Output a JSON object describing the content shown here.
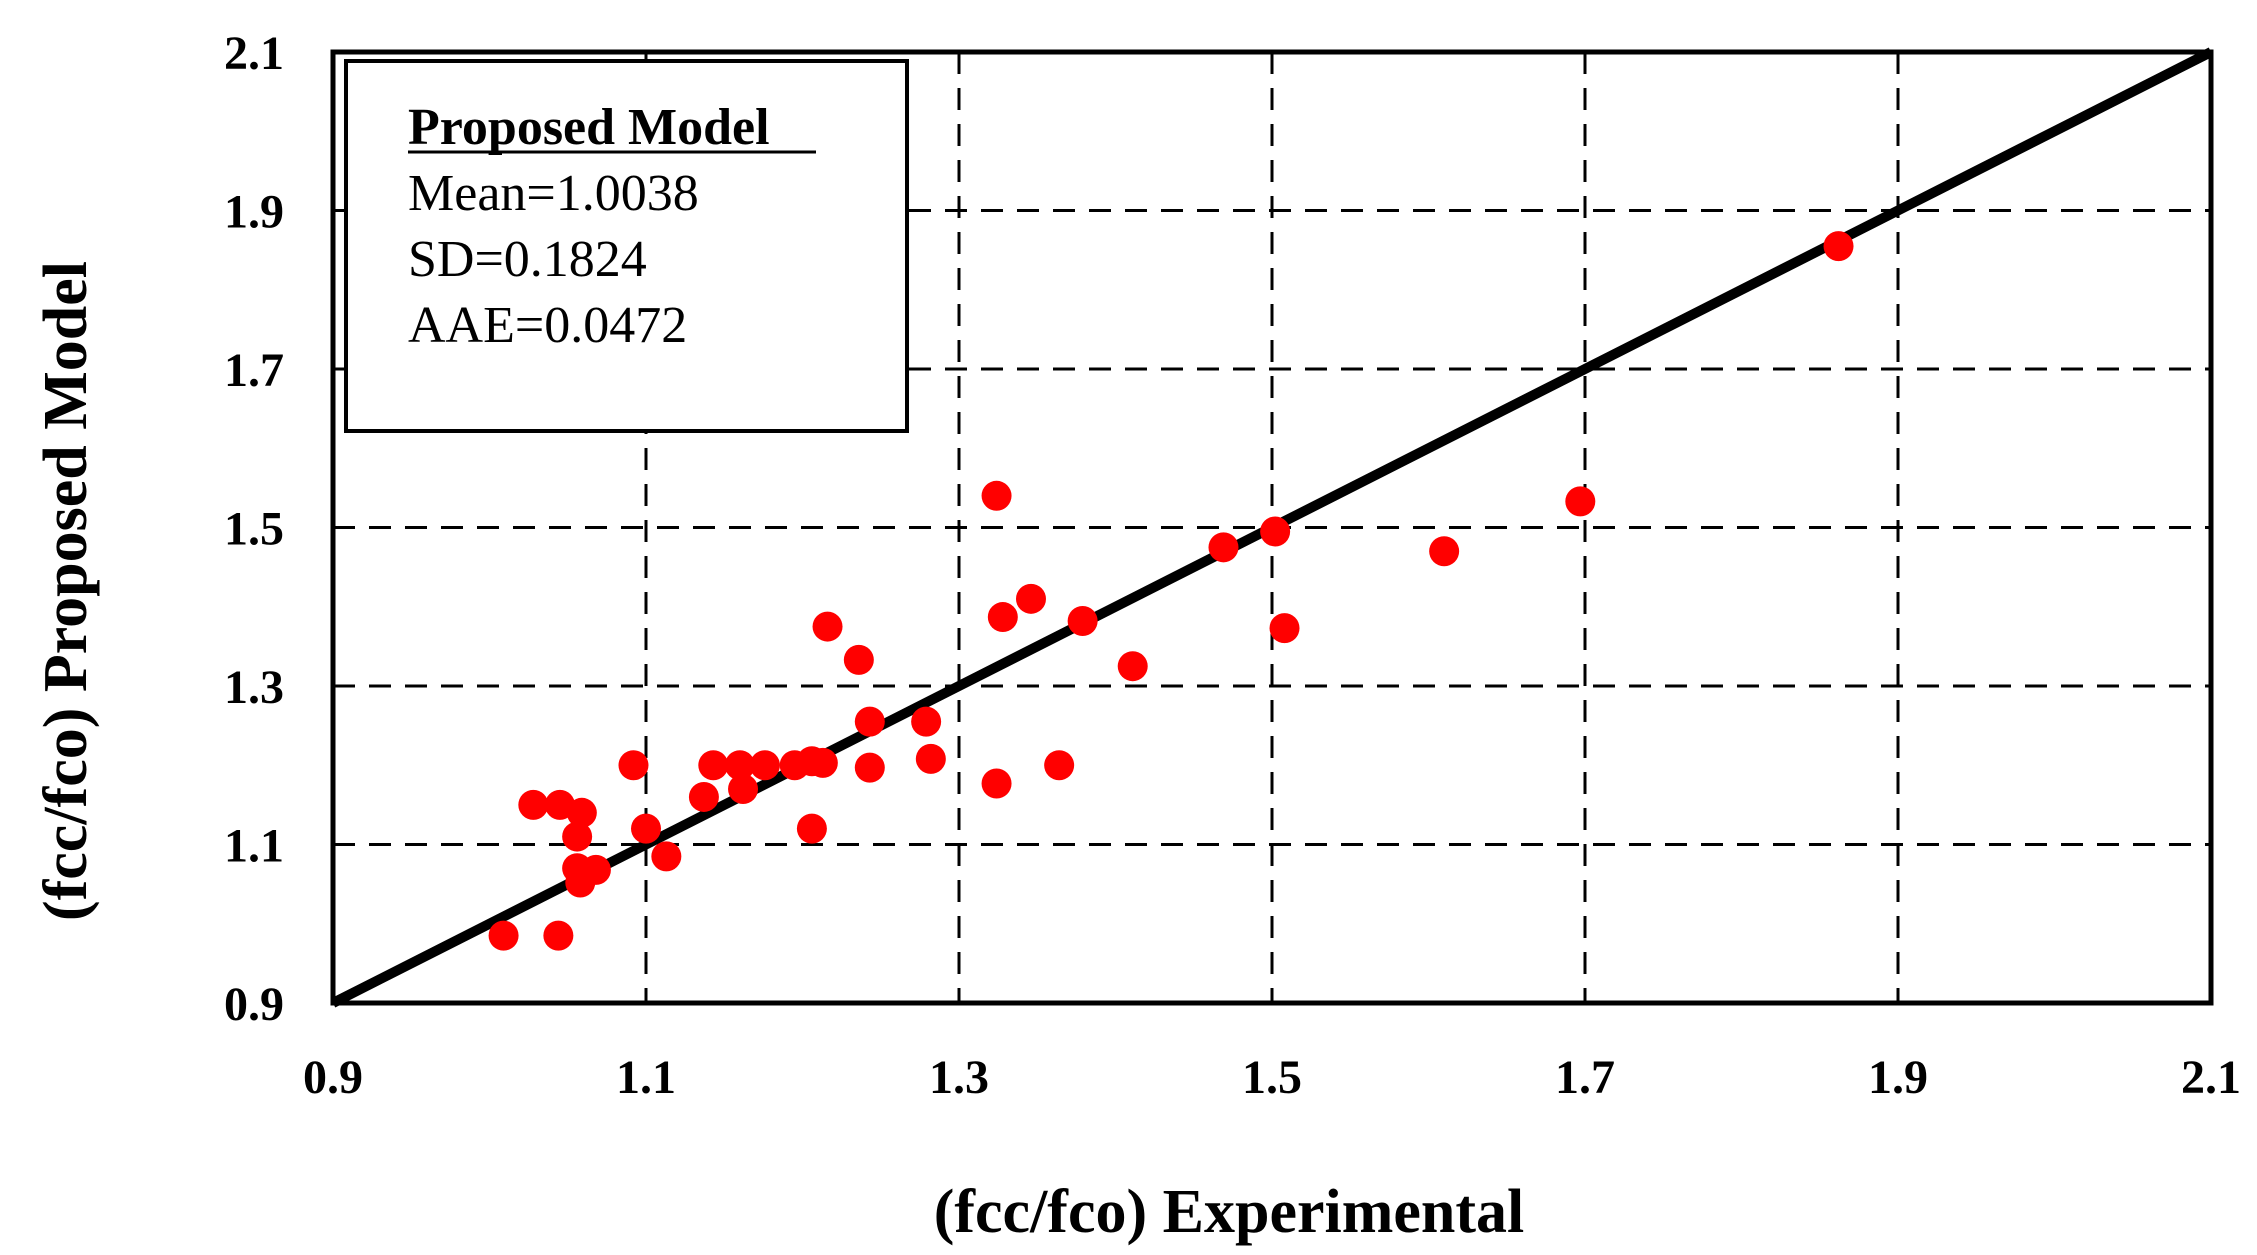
{
  "chart_data": {
    "type": "scatter",
    "title": "",
    "xlabel": "(fcc/fco) Experimental",
    "ylabel": "(fcc/fco) Proposed Model",
    "xlim": [
      0.9,
      2.1
    ],
    "ylim": [
      0.9,
      2.1
    ],
    "xticks": [
      0.9,
      1.1,
      1.3,
      1.5,
      1.7,
      1.9,
      2.1
    ],
    "yticks": [
      0.9,
      1.1,
      1.3,
      1.5,
      1.7,
      1.9,
      2.1
    ],
    "xtick_labels": [
      "0.9",
      "1.1",
      "1.3",
      "1.5",
      "1.7",
      "1.9",
      "2.1"
    ],
    "ytick_labels": [
      "0.9",
      "1.1",
      "1.3",
      "1.5",
      "1.7",
      "1.9",
      "2.1"
    ],
    "grid": true,
    "grid_style": "dashed",
    "reference_line": {
      "name": "equality line",
      "from": [
        0.9,
        0.9
      ],
      "to": [
        2.1,
        2.1
      ],
      "color": "#000000"
    },
    "legend": {
      "position": "top-left",
      "title": "Proposed Model",
      "stats": [
        "Mean=1.0038",
        "SD=0.1824",
        "AAE=0.0472"
      ]
    },
    "series": [
      {
        "name": "Proposed Model",
        "color": "#ff0000",
        "points": [
          {
            "x": 1.009,
            "y": 0.985
          },
          {
            "x": 1.044,
            "y": 0.985
          },
          {
            "x": 1.028,
            "y": 1.15
          },
          {
            "x": 1.045,
            "y": 1.15
          },
          {
            "x": 1.059,
            "y": 1.14
          },
          {
            "x": 1.056,
            "y": 1.11
          },
          {
            "x": 1.056,
            "y": 1.07
          },
          {
            "x": 1.058,
            "y": 1.052
          },
          {
            "x": 1.068,
            "y": 1.068
          },
          {
            "x": 1.092,
            "y": 1.2
          },
          {
            "x": 1.1,
            "y": 1.12
          },
          {
            "x": 1.113,
            "y": 1.085
          },
          {
            "x": 1.137,
            "y": 1.16
          },
          {
            "x": 1.143,
            "y": 1.2
          },
          {
            "x": 1.16,
            "y": 1.2
          },
          {
            "x": 1.162,
            "y": 1.17
          },
          {
            "x": 1.176,
            "y": 1.2
          },
          {
            "x": 1.195,
            "y": 1.2
          },
          {
            "x": 1.206,
            "y": 1.12
          },
          {
            "x": 1.206,
            "y": 1.205
          },
          {
            "x": 1.213,
            "y": 1.203
          },
          {
            "x": 1.216,
            "y": 1.375
          },
          {
            "x": 1.236,
            "y": 1.333
          },
          {
            "x": 1.243,
            "y": 1.255
          },
          {
            "x": 1.243,
            "y": 1.197
          },
          {
            "x": 1.279,
            "y": 1.255
          },
          {
            "x": 1.282,
            "y": 1.208
          },
          {
            "x": 1.324,
            "y": 1.54
          },
          {
            "x": 1.324,
            "y": 1.177
          },
          {
            "x": 1.328,
            "y": 1.387
          },
          {
            "x": 1.346,
            "y": 1.41
          },
          {
            "x": 1.364,
            "y": 1.2
          },
          {
            "x": 1.379,
            "y": 1.382
          },
          {
            "x": 1.411,
            "y": 1.325
          },
          {
            "x": 1.469,
            "y": 1.475
          },
          {
            "x": 1.502,
            "y": 1.495
          },
          {
            "x": 1.508,
            "y": 1.373
          },
          {
            "x": 1.61,
            "y": 1.47
          },
          {
            "x": 1.697,
            "y": 1.533
          },
          {
            "x": 1.862,
            "y": 1.855
          }
        ]
      }
    ]
  }
}
